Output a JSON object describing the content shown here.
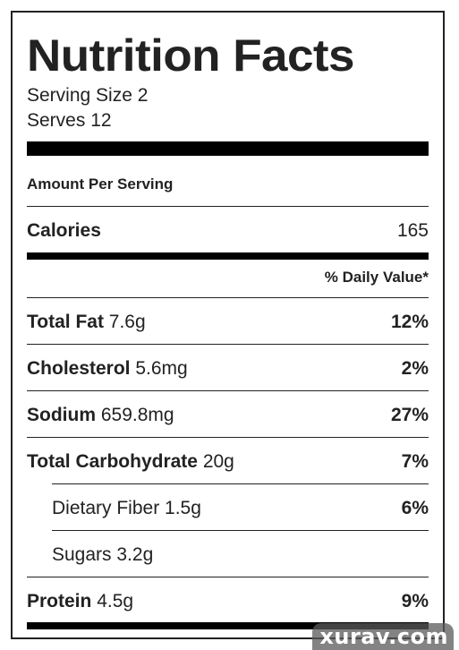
{
  "label": {
    "title": "Nutrition Facts",
    "serving_size": "Serving Size 2",
    "serves": "Serves 12",
    "amount_per_serving": "Amount Per Serving",
    "calories": {
      "name": "Calories",
      "value": "165"
    },
    "daily_value_header": "% Daily Value*",
    "nutrients": [
      {
        "name": "Total Fat",
        "amount": "7.6g",
        "dv": "12%"
      },
      {
        "name": "Cholesterol",
        "amount": "5.6mg",
        "dv": "2%"
      },
      {
        "name": "Sodium",
        "amount": "659.8mg",
        "dv": "27%"
      },
      {
        "name": "Total Carbohydrate",
        "amount": "20g",
        "dv": "7%"
      },
      {
        "name": "Dietary Fiber",
        "amount": "1.5g",
        "dv": "6%"
      },
      {
        "name": "Sugars",
        "amount": "3.2g",
        "dv": ""
      },
      {
        "name": "Protein",
        "amount": "4.5g",
        "dv": "9%"
      }
    ]
  },
  "watermark": {
    "text": "xurav.com"
  }
}
